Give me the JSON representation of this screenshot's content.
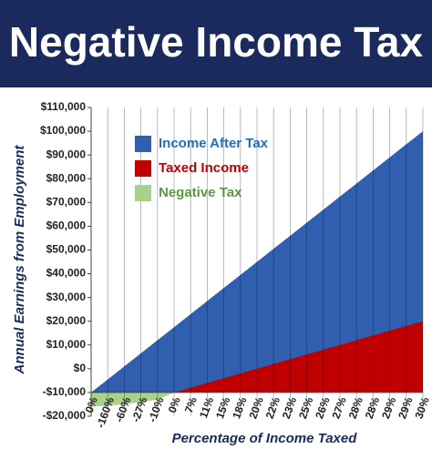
{
  "chart_data": {
    "type": "area",
    "title": "Negative Income Tax",
    "xlabel": "Percentage of Income Taxed",
    "ylabel": "Annual Earnings from Employment",
    "categories": [
      "0%",
      "-160%",
      "-60%",
      "-27%",
      "-10%",
      "0%",
      "7%",
      "11%",
      "15%",
      "18%",
      "20%",
      "22%",
      "23%",
      "25%",
      "26%",
      "27%",
      "28%",
      "28%",
      "29%",
      "29%",
      "30%"
    ],
    "baseline": -10000,
    "series": [
      {
        "name": "Income After Tax",
        "color": "#2f5fae",
        "values": [
          -10000,
          -4500,
          1000,
          6500,
          12000,
          17500,
          23000,
          28500,
          34000,
          39500,
          45000,
          50500,
          56000,
          61500,
          67000,
          72500,
          78000,
          83500,
          89000,
          94500,
          100000
        ]
      },
      {
        "name": "Taxed Income",
        "color": "#c00000",
        "values": [
          -10000,
          -10000,
          -10000,
          -10000,
          -10000,
          -10000,
          -8000,
          -6000,
          -4000,
          -2000,
          0,
          2000,
          4000,
          6000,
          8000,
          10000,
          12000,
          14000,
          16000,
          18000,
          20000
        ]
      },
      {
        "name": "Negative Tax",
        "color": "#a9d18e",
        "values": [
          -16000,
          -15500,
          -15000,
          -14000,
          -13000,
          -10000,
          -10000,
          -10000,
          -10000,
          -10000,
          -10000,
          -10000,
          -10000,
          -10000,
          -10000,
          -10000,
          -10000,
          -10000,
          -10000,
          -10000,
          -10000
        ]
      }
    ],
    "legend_colors": [
      "#1f6fc0",
      "#c00000",
      "#5a9a3a"
    ],
    "ylim": [
      -20000,
      110000
    ],
    "yticks": [
      {
        "value": -20000,
        "label": "-$20,000"
      },
      {
        "value": -10000,
        "label": "-$10,000"
      },
      {
        "value": 0,
        "label": "$0"
      },
      {
        "value": 10000,
        "label": "$10,000"
      },
      {
        "value": 20000,
        "label": "$20,000"
      },
      {
        "value": 30000,
        "label": "$30,000"
      },
      {
        "value": 40000,
        "label": "$40,000"
      },
      {
        "value": 50000,
        "label": "$50,000"
      },
      {
        "value": 60000,
        "label": "$60,000"
      },
      {
        "value": 70000,
        "label": "$70,000"
      },
      {
        "value": 80000,
        "label": "$80,000"
      },
      {
        "value": 90000,
        "label": "$90,000"
      },
      {
        "value": 100000,
        "label": "$100,000"
      },
      {
        "value": 110000,
        "label": "$110,000"
      }
    ],
    "grid": true
  }
}
